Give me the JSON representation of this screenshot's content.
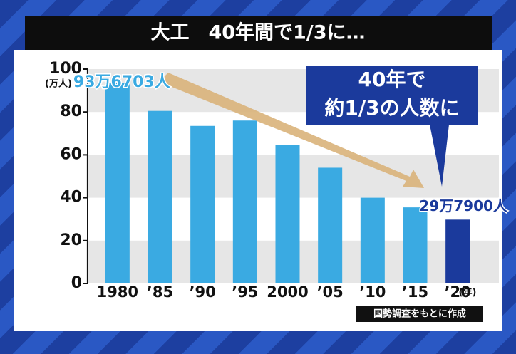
{
  "chart_data": {
    "type": "bar",
    "title": "大工　40年間で1/3に…",
    "categories": [
      "1980",
      "’85",
      "’90",
      "’95",
      "2000",
      "’05",
      "’10",
      "’15",
      "’20"
    ],
    "values": [
      93.6703,
      80.5,
      73.5,
      76,
      64.5,
      54,
      40,
      35.5,
      29.79
    ],
    "value_labels": [
      "93万6703人",
      null,
      null,
      null,
      null,
      null,
      null,
      null,
      "29万7900人"
    ],
    "colors": [
      "#3aaae2",
      "#3aaae2",
      "#3aaae2",
      "#3aaae2",
      "#3aaae2",
      "#3aaae2",
      "#3aaae2",
      "#3aaae2",
      "#1b3a9c"
    ],
    "ylim": [
      0,
      100
    ],
    "yticks": [
      0,
      20,
      40,
      60,
      80,
      100
    ],
    "y_unit": "(万人)",
    "x_unit": "(年)",
    "annotation": [
      "40年で",
      "約1/3の人数に"
    ],
    "source": "国勢調査をもとに作成"
  }
}
